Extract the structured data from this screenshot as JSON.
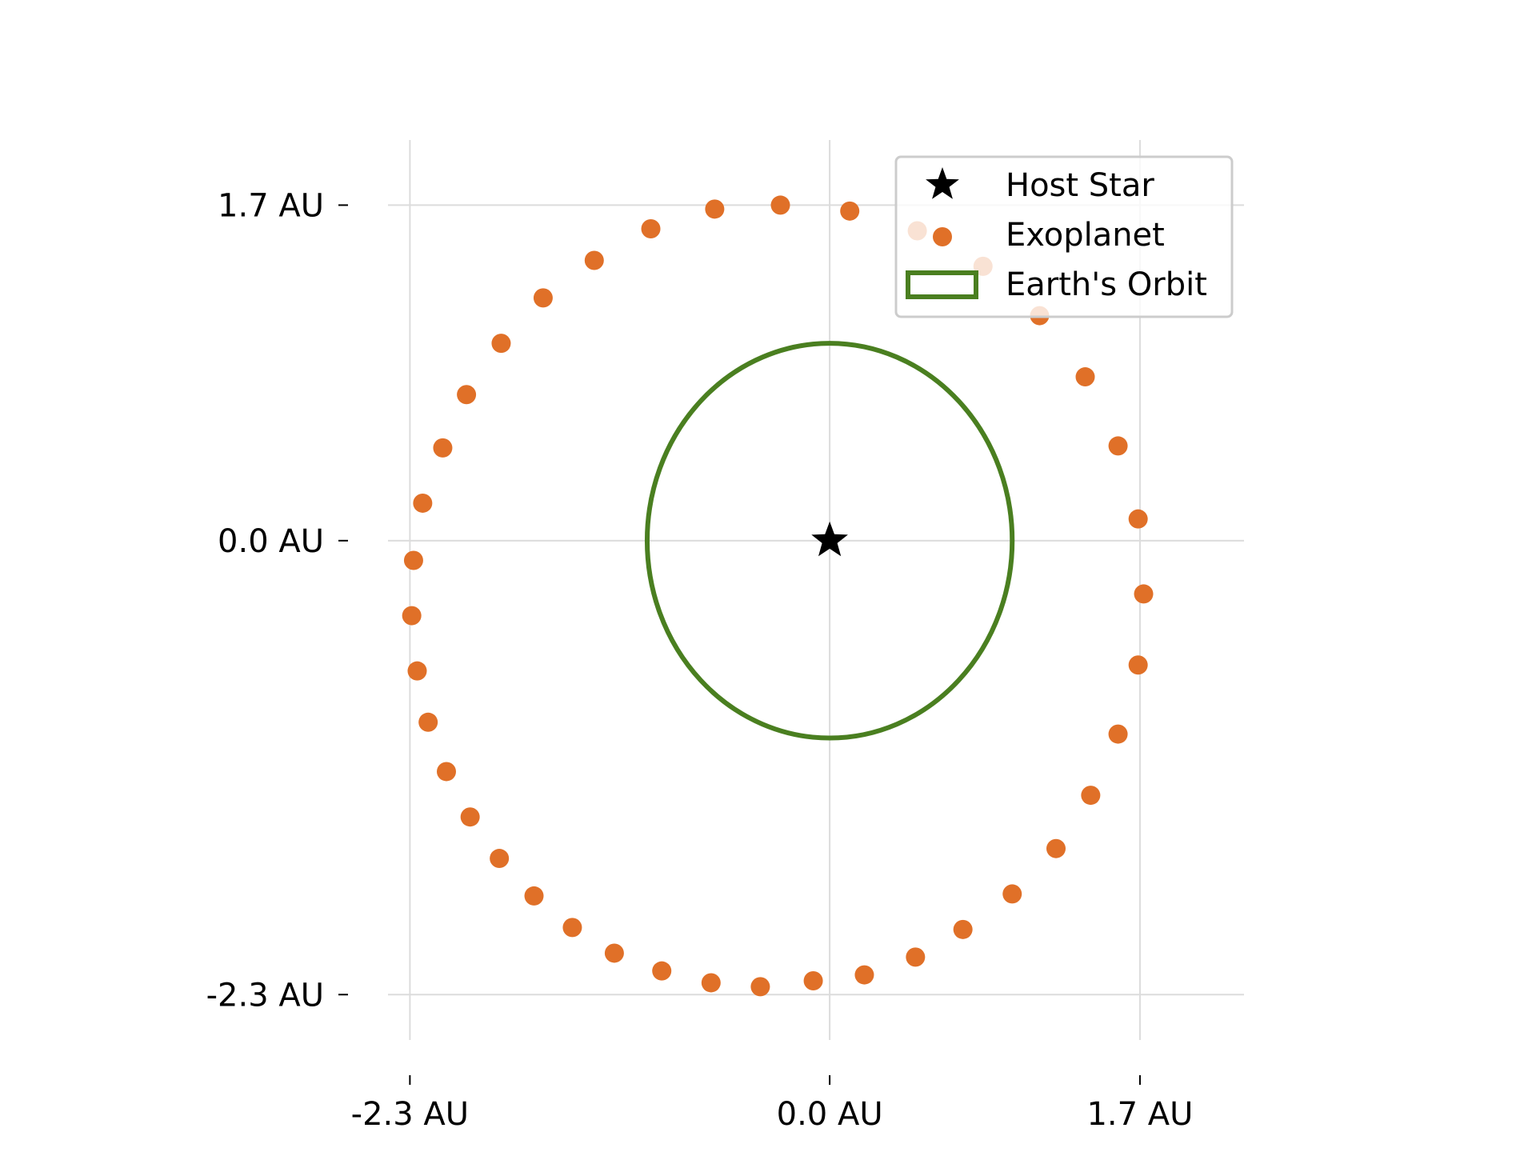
{
  "chart_data": {
    "type": "scatter",
    "title": "",
    "xlabel": "",
    "ylabel": "",
    "xlim": [
      -2.42,
      2.27
    ],
    "ylim": [
      -2.53,
      2.03
    ],
    "grid": true,
    "aspect": "equal",
    "legend_position": "top-right",
    "x_ticks": [
      {
        "value": -2.3,
        "label": "-2.3 AU"
      },
      {
        "value": 0.0,
        "label": "0.0 AU"
      },
      {
        "value": 1.7,
        "label": "1.7 AU"
      }
    ],
    "y_ticks": [
      {
        "value": 1.7,
        "label": "1.7 AU"
      },
      {
        "value": 0.0,
        "label": "0.0 AU"
      },
      {
        "value": -2.3,
        "label": "-2.3 AU"
      }
    ],
    "series": [
      {
        "name": "Host Star",
        "marker": "star",
        "color": "#000000",
        "points": [
          [
            0.0,
            0.0
          ]
        ]
      },
      {
        "name": "Exoplanet",
        "marker": "circle",
        "color": "#e07028",
        "points": [
          [
            -0.27,
            1.7
          ],
          [
            0.11,
            1.67
          ],
          [
            0.48,
            1.57
          ],
          [
            0.84,
            1.39
          ],
          [
            1.15,
            1.14
          ],
          [
            1.4,
            0.83
          ],
          [
            1.58,
            0.48
          ],
          [
            1.69,
            0.11
          ],
          [
            1.72,
            -0.27
          ],
          [
            1.69,
            -0.63
          ],
          [
            1.58,
            -0.98
          ],
          [
            1.43,
            -1.29
          ],
          [
            1.24,
            -1.56
          ],
          [
            1.0,
            -1.79
          ],
          [
            0.73,
            -1.97
          ],
          [
            0.47,
            -2.11
          ],
          [
            0.19,
            -2.2
          ],
          [
            -0.09,
            -2.23
          ],
          [
            -0.38,
            -2.26
          ],
          [
            -0.65,
            -2.24
          ],
          [
            -0.92,
            -2.18
          ],
          [
            -1.18,
            -2.09
          ],
          [
            -1.41,
            -1.96
          ],
          [
            -1.62,
            -1.8
          ],
          [
            -1.81,
            -1.61
          ],
          [
            -1.97,
            -1.4
          ],
          [
            -2.1,
            -1.17
          ],
          [
            -2.2,
            -0.92
          ],
          [
            -2.26,
            -0.66
          ],
          [
            -2.29,
            -0.38
          ],
          [
            -2.28,
            -0.1
          ],
          [
            -2.23,
            0.19
          ],
          [
            -2.12,
            0.47
          ],
          [
            -1.99,
            0.74
          ],
          [
            -1.8,
            1.0
          ],
          [
            -1.57,
            1.23
          ],
          [
            -1.29,
            1.42
          ],
          [
            -0.98,
            1.58
          ],
          [
            -0.63,
            1.68
          ]
        ]
      },
      {
        "name": "Earth's Orbit",
        "marker": "circle-outline",
        "color": "#4a7f20",
        "center": [
          0.0,
          0.0
        ],
        "radius": 1.0
      }
    ]
  }
}
